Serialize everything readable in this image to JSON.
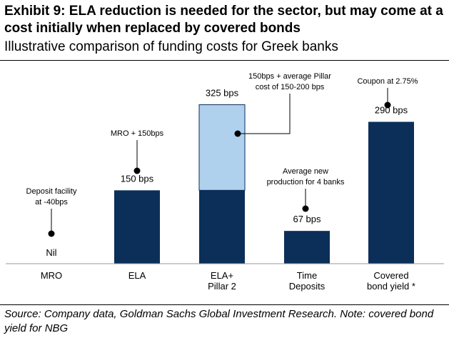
{
  "header": {
    "title": "Exhibit 9: ELA reduction is needed for the sector, but may come at a cost initially when replaced by covered bonds",
    "subtitle": "Illustrative comparison of funding costs for Greek banks"
  },
  "footer": {
    "source": "Source: Company data, Goldman Sachs Global Investment Research. Note: covered bond yield for NBG"
  },
  "colors": {
    "dark_bar": "#0b2f59",
    "light_bar": "#afd1ee",
    "axis": "#999999"
  },
  "chart_data": {
    "type": "bar",
    "stacked": true,
    "units": "bps",
    "categories": [
      [
        "MRO"
      ],
      [
        "ELA"
      ],
      [
        "ELA+",
        "Pillar 2"
      ],
      [
        "Time",
        "Deposits"
      ],
      [
        "Covered",
        "bond yield *"
      ]
    ],
    "series": [
      {
        "values": [
          0,
          150,
          150,
          67,
          290
        ]
      },
      {
        "values": [
          0,
          0,
          175,
          0,
          0
        ]
      }
    ],
    "value_labels": [
      "Nil",
      "150 bps",
      "325 bps",
      "67 bps",
      "290 bps"
    ],
    "annotations": [
      {
        "category_index": 0,
        "lines": [
          "Deposit facility",
          "at -40bps"
        ]
      },
      {
        "category_index": 1,
        "lines": [
          "MRO + 150bps"
        ]
      },
      {
        "category_index": 2,
        "lines": [
          "150bps + average Pillar",
          "cost of 150-200 bps"
        ]
      },
      {
        "category_index": 3,
        "lines": [
          "Average new",
          "production for 4 banks"
        ]
      },
      {
        "category_index": 4,
        "lines": [
          "Coupon at 2.75%"
        ]
      }
    ],
    "ylim": [
      0,
      350
    ],
    "grid": false,
    "legend": "none"
  }
}
